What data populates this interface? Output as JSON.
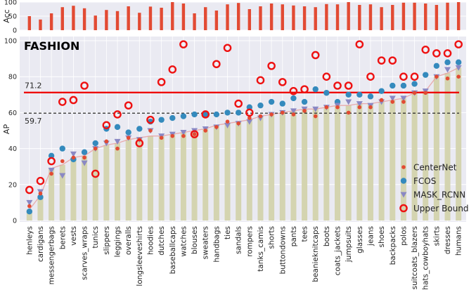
{
  "chart_data": [
    {
      "type": "bar",
      "ylabel": "Acc",
      "ylim": [
        0,
        100
      ],
      "yticks": [
        0,
        50,
        100
      ],
      "grid": true,
      "color": "#e24a33",
      "categories": [
        "henleys",
        "cardigans",
        "messengerbags",
        "berets",
        "vests",
        "scarves_wraps",
        "tunics",
        "slippers",
        "leggings",
        "overalls",
        "longsleeveshirts",
        "hoodies",
        "dutches",
        "baseballcaps",
        "watches",
        "blouses",
        "sweaters",
        "handbags",
        "ties",
        "sandals",
        "rompers",
        "tanks_camis",
        "shorts",
        "buttondowns",
        "pants",
        "tees",
        "beanieknitcaps",
        "boots",
        "coats_jackets",
        "jumpsuits",
        "glasses",
        "jeans",
        "shoes",
        "backpacks",
        "polos",
        "suitcoats_blazers",
        "hats_cowboyhats",
        "skirts",
        "dresses",
        "humans"
      ],
      "values": [
        50,
        38,
        60,
        82,
        87,
        78,
        52,
        72,
        68,
        85,
        62,
        84,
        80,
        100,
        95,
        60,
        82,
        70,
        92,
        97,
        75,
        85,
        95,
        92,
        88,
        85,
        82,
        93,
        92,
        100,
        90,
        92,
        82,
        90,
        98,
        98,
        95,
        90,
        98,
        100
      ]
    },
    {
      "type": "scatter",
      "title": "FASHION",
      "ylabel": "AP",
      "ylim": [
        0,
        100
      ],
      "yticks": [
        0,
        20,
        40,
        60,
        80,
        100
      ],
      "grid": true,
      "legend_position": "lower-right",
      "categories": [
        "henleys",
        "cardigans",
        "messengerbags",
        "berets",
        "vests",
        "scarves_wraps",
        "tunics",
        "slippers",
        "leggings",
        "overalls",
        "longsleeveshirts",
        "hoodies",
        "dutches",
        "baseballcaps",
        "watches",
        "blouses",
        "sweaters",
        "handbags",
        "ties",
        "sandals",
        "rompers",
        "tanks_camis",
        "shorts",
        "buttondowns",
        "pants",
        "tees",
        "beanieknitcaps",
        "boots",
        "coats_jackets",
        "jumpsuits",
        "glasses",
        "jeans",
        "shoes",
        "backpacks",
        "polos",
        "suitcoats_blazers",
        "hats_cowboyhats",
        "skirts",
        "dresses",
        "humans"
      ],
      "bars": {
        "color": "#d4d4b0",
        "values": [
          6,
          14,
          29,
          31,
          35,
          36,
          40,
          42,
          43,
          45,
          46,
          47,
          47,
          48,
          49,
          50,
          51,
          53,
          54,
          55,
          56,
          58,
          59,
          60,
          61,
          62,
          62,
          63,
          64,
          64,
          65,
          65,
          66,
          67,
          68,
          71,
          72,
          80,
          82,
          85
        ]
      },
      "trend_color": "#e8a0a0",
      "series": [
        {
          "name": "CenterNet",
          "color": "#e24a33",
          "marker": "dot",
          "values": [
            8,
            15,
            26,
            33,
            35,
            35,
            40,
            44,
            40,
            46,
            45,
            50,
            46,
            47,
            47,
            48,
            50,
            52,
            55,
            54,
            57,
            58,
            59,
            60,
            59,
            61,
            58,
            63,
            63,
            60,
            63,
            63,
            67,
            66,
            66,
            71,
            71,
            80,
            79,
            80
          ]
        },
        {
          "name": "FCOS",
          "color": "#348abd",
          "marker": "circle",
          "values": [
            5,
            13,
            36,
            40,
            34,
            38,
            43,
            51,
            52,
            49,
            51,
            55,
            56,
            57,
            58,
            59,
            59,
            59,
            60,
            60,
            63,
            64,
            66,
            65,
            68,
            66,
            73,
            71,
            66,
            70,
            70,
            69,
            72,
            75,
            75,
            76,
            81,
            86,
            88,
            88
          ]
        },
        {
          "name": "MASK_RCNN",
          "color": "#8a88c4",
          "marker": "triangle-down",
          "values": [
            10,
            16,
            28,
            25,
            37,
            32,
            40,
            43,
            44,
            46,
            45,
            50,
            47,
            48,
            49,
            50,
            51,
            52,
            53,
            54,
            55,
            57,
            59,
            60,
            61,
            62,
            62,
            63,
            64,
            66,
            65,
            64,
            66,
            68,
            68,
            71,
            72,
            80,
            84,
            85
          ]
        },
        {
          "name": "Upper Bound",
          "color": "#ee1111",
          "marker": "ring",
          "values": [
            17,
            22,
            33,
            66,
            67,
            75,
            26,
            53,
            59,
            64,
            43,
            56,
            77,
            84,
            98,
            48,
            59,
            87,
            96,
            65,
            60,
            78,
            86,
            77,
            72,
            73,
            92,
            80,
            75,
            75,
            98,
            80,
            89,
            89,
            80,
            80,
            95,
            93,
            93,
            98
          ]
        }
      ],
      "reference_lines": [
        {
          "label": "71.2",
          "value": 71.2,
          "color": "#ee0000",
          "style": "solid"
        },
        {
          "label": "59.7",
          "value": 59.7,
          "color": "#333333",
          "style": "dashed"
        }
      ]
    }
  ]
}
